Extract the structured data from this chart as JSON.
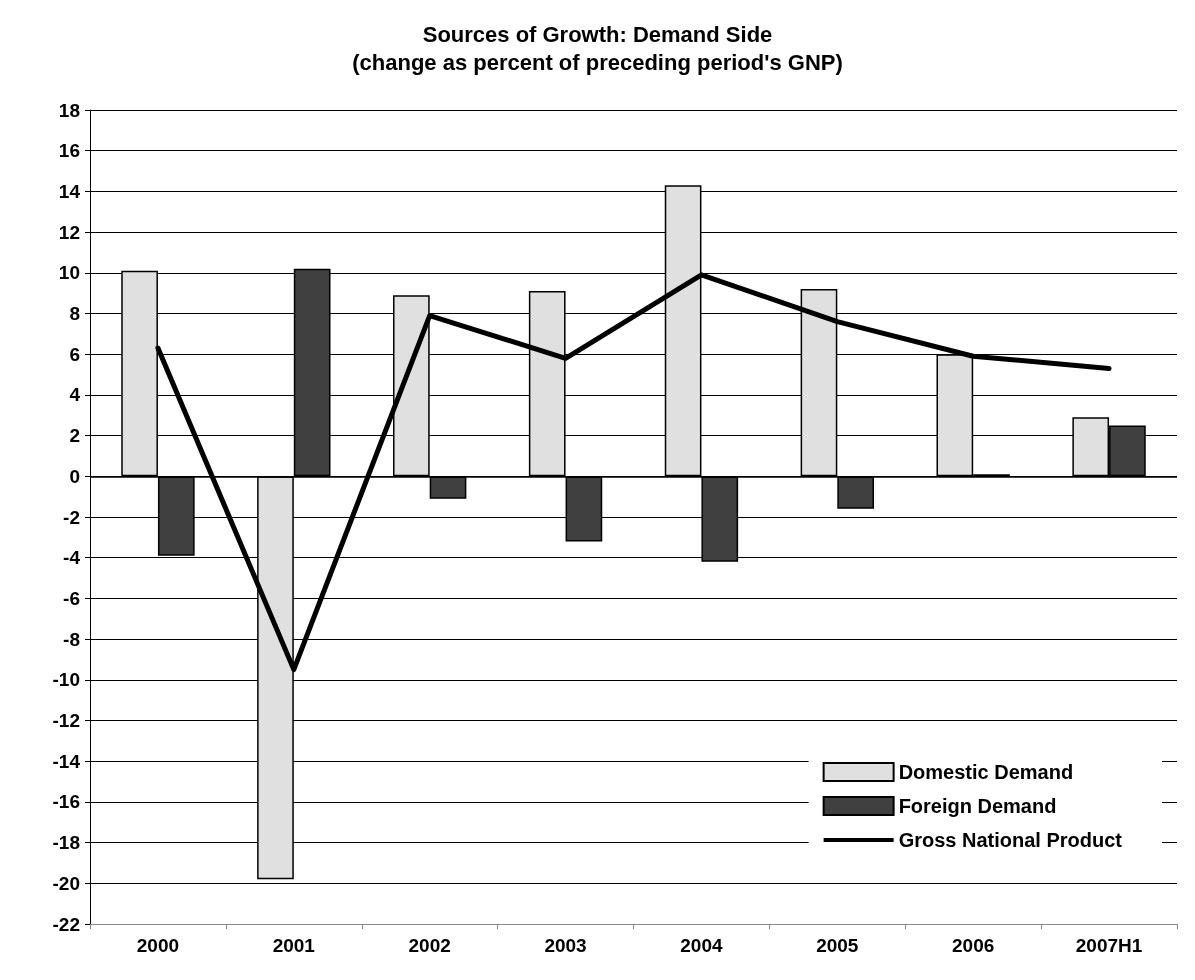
{
  "chart_data": {
    "type": "bar",
    "title": "Sources of Growth: Demand Side",
    "subtitle": "(change as percent of preceding period's GNP)",
    "categories": [
      "2000",
      "2001",
      "2002",
      "2003",
      "2004",
      "2005",
      "2006",
      "2007H1"
    ],
    "series": [
      {
        "name": "Domestic Demand",
        "color": "#e0e0e0",
        "values": [
          10.1,
          -19.8,
          8.9,
          9.1,
          14.3,
          9.2,
          6.0,
          2.9
        ]
      },
      {
        "name": "Foreign Demand",
        "color": "#404040",
        "values": [
          -3.9,
          10.2,
          -1.1,
          -3.2,
          -4.2,
          -1.6,
          0.1,
          2.5
        ]
      },
      {
        "name": "Gross National Product",
        "type": "line",
        "color": "#000000",
        "values": [
          6.3,
          -9.5,
          7.9,
          5.8,
          9.9,
          7.6,
          5.9,
          5.3
        ]
      }
    ],
    "ylim": [
      -22,
      18
    ],
    "yticks": [
      -22,
      -20,
      -18,
      -16,
      -14,
      -12,
      -10,
      -8,
      -6,
      -4,
      -2,
      0,
      2,
      4,
      6,
      8,
      10,
      12,
      14,
      16,
      18
    ],
    "grid": "y",
    "legend": "bottom right",
    "marker": "none",
    "line_style": "solid"
  }
}
